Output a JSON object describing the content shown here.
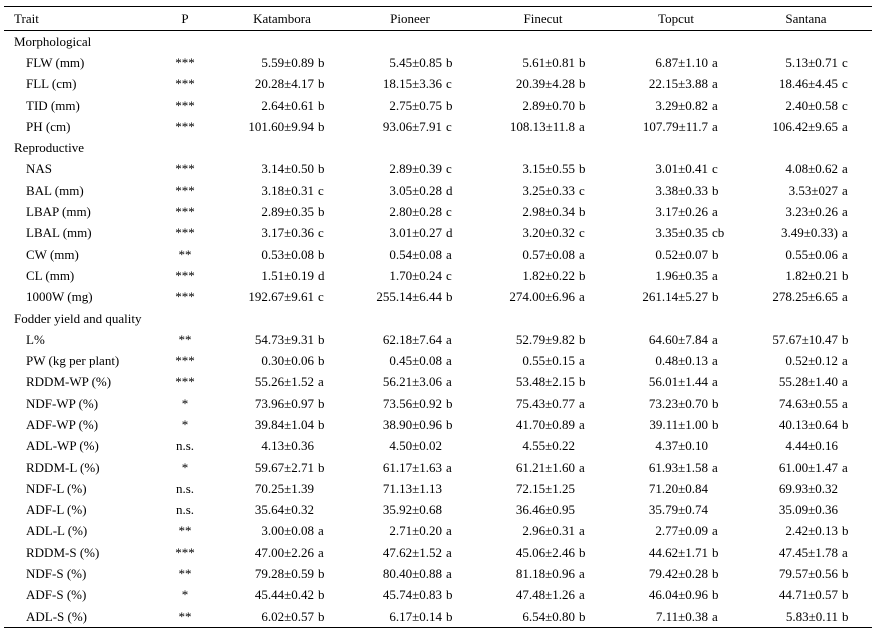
{
  "headers": [
    "Trait",
    "P",
    "Katambora",
    "Pioneer",
    "Finecut",
    "Topcut",
    "Santana"
  ],
  "sections": [
    {
      "title": "Morphological",
      "rows": [
        {
          "trait": "FLW (mm)",
          "p": "***",
          "values": [
            [
              "5.59±0.89",
              "b"
            ],
            [
              "5.45±0.85",
              "b"
            ],
            [
              "5.61±0.81",
              "b"
            ],
            [
              "6.87±1.10",
              "a"
            ],
            [
              "5.13±0.71",
              "c"
            ]
          ]
        },
        {
          "trait": "FLL (cm)",
          "p": "***",
          "values": [
            [
              "20.28±4.17",
              "b"
            ],
            [
              "18.15±3.36",
              "c"
            ],
            [
              "20.39±4.28",
              "b"
            ],
            [
              "22.15±3.88",
              "a"
            ],
            [
              "18.46±4.45",
              "c"
            ]
          ]
        },
        {
          "trait": "TID (mm)",
          "p": "***",
          "values": [
            [
              "2.64±0.61",
              "b"
            ],
            [
              "2.75±0.75",
              "b"
            ],
            [
              "2.89±0.70",
              "b"
            ],
            [
              "3.29±0.82",
              "a"
            ],
            [
              "2.40±0.58",
              "c"
            ]
          ]
        },
        {
          "trait": "PH (cm)",
          "p": "***",
          "values": [
            [
              "101.60±9.94",
              "b"
            ],
            [
              "93.06±7.91",
              "c"
            ],
            [
              "108.13±11.8",
              "a"
            ],
            [
              "107.79±11.7",
              "a"
            ],
            [
              "106.42±9.65",
              "a"
            ]
          ]
        }
      ]
    },
    {
      "title": "Reproductive",
      "rows": [
        {
          "trait": "NAS",
          "p": "***",
          "values": [
            [
              "3.14±0.50",
              "b"
            ],
            [
              "2.89±0.39",
              "c"
            ],
            [
              "3.15±0.55",
              "b"
            ],
            [
              "3.01±0.41",
              "c"
            ],
            [
              "4.08±0.62",
              "a"
            ]
          ]
        },
        {
          "trait": "BAL (mm)",
          "p": "***",
          "values": [
            [
              "3.18±0.31",
              "c"
            ],
            [
              "3.05±0.28",
              "d"
            ],
            [
              "3.25±0.33",
              "c"
            ],
            [
              "3.38±0.33",
              "b"
            ],
            [
              "3.53±027",
              "a"
            ]
          ]
        },
        {
          "trait": "LBAP (mm)",
          "p": "***",
          "values": [
            [
              "2.89±0.35",
              "b"
            ],
            [
              "2.80±0.28",
              "c"
            ],
            [
              "2.98±0.34",
              "b"
            ],
            [
              "3.17±0.26",
              "a"
            ],
            [
              "3.23±0.26",
              "a"
            ]
          ]
        },
        {
          "trait": "LBAL (mm)",
          "p": "***",
          "values": [
            [
              "3.17±0.36",
              "c"
            ],
            [
              "3.01±0.27",
              "d"
            ],
            [
              "3.20±0.32",
              "c"
            ],
            [
              "3.35±0.35",
              "cb"
            ],
            [
              "3.49±0.33)",
              "a"
            ]
          ]
        },
        {
          "trait": "CW (mm)",
          "p": "**",
          "values": [
            [
              "0.53±0.08",
              "b"
            ],
            [
              "0.54±0.08",
              "a"
            ],
            [
              "0.57±0.08",
              "a"
            ],
            [
              "0.52±0.07",
              "b"
            ],
            [
              "0.55±0.06",
              "a"
            ]
          ]
        },
        {
          "trait": "CL (mm)",
          "p": "***",
          "values": [
            [
              "1.51±0.19",
              "d"
            ],
            [
              "1.70±0.24",
              "c"
            ],
            [
              "1.82±0.22",
              "b"
            ],
            [
              "1.96±0.35",
              "a"
            ],
            [
              "1.82±0.21",
              "b"
            ]
          ]
        },
        {
          "trait": "1000W (mg)",
          "p": "***",
          "values": [
            [
              "192.67±9.61",
              "c"
            ],
            [
              "255.14±6.44",
              "b"
            ],
            [
              "274.00±6.96",
              "a"
            ],
            [
              "261.14±5.27",
              "b"
            ],
            [
              "278.25±6.65",
              "a"
            ]
          ]
        }
      ]
    },
    {
      "title": "Fodder yield and quality",
      "rows": [
        {
          "trait": "L%",
          "p": "**",
          "values": [
            [
              "54.73±9.31",
              "b"
            ],
            [
              "62.18±7.64",
              "a"
            ],
            [
              "52.79±9.82",
              "b"
            ],
            [
              "64.60±7.84",
              "a"
            ],
            [
              "57.67±10.47",
              "b"
            ]
          ]
        },
        {
          "trait": "PW (kg per plant)",
          "p": "***",
          "values": [
            [
              "0.30±0.06",
              "b"
            ],
            [
              "0.45±0.08",
              "a"
            ],
            [
              "0.55±0.15",
              "a"
            ],
            [
              "0.48±0.13",
              "a"
            ],
            [
              "0.52±0.12",
              "a"
            ]
          ]
        },
        {
          "trait": "RDDM-WP (%)",
          "p": "***",
          "values": [
            [
              "55.26±1.52",
              "a"
            ],
            [
              "56.21±3.06",
              "a"
            ],
            [
              "53.48±2.15",
              "b"
            ],
            [
              "56.01±1.44",
              "a"
            ],
            [
              "55.28±1.40",
              "a"
            ]
          ]
        },
        {
          "trait": "NDF-WP (%)",
          "p": "*",
          "values": [
            [
              "73.96±0.97",
              "b"
            ],
            [
              "73.56±0.92",
              "b"
            ],
            [
              "75.43±0.77",
              "a"
            ],
            [
              "73.23±0.70",
              "b"
            ],
            [
              "74.63±0.55",
              "a"
            ]
          ]
        },
        {
          "trait": "ADF-WP (%)",
          "p": "*",
          "values": [
            [
              "39.84±1.04",
              "b"
            ],
            [
              "38.90±0.96",
              "b"
            ],
            [
              "41.70±0.89",
              "a"
            ],
            [
              "39.11±1.00",
              "b"
            ],
            [
              "40.13±0.64",
              "b"
            ]
          ]
        },
        {
          "trait": "ADL-WP (%)",
          "p": "n.s.",
          "values": [
            [
              "4.13±0.36",
              ""
            ],
            [
              "4.50±0.02",
              ""
            ],
            [
              "4.55±0.22",
              ""
            ],
            [
              "4.37±0.10",
              ""
            ],
            [
              "4.44±0.16",
              ""
            ]
          ]
        },
        {
          "trait": "RDDM-L (%)",
          "p": "*",
          "values": [
            [
              "59.67±2.71",
              "b"
            ],
            [
              "61.17±1.63",
              "a"
            ],
            [
              "61.21±1.60",
              "a"
            ],
            [
              "61.93±1.58",
              "a"
            ],
            [
              "61.00±1.47",
              "a"
            ]
          ]
        },
        {
          "trait": "NDF-L (%)",
          "p": "n.s.",
          "values": [
            [
              "70.25±1.39",
              ""
            ],
            [
              "71.13±1.13",
              ""
            ],
            [
              "72.15±1.25",
              ""
            ],
            [
              "71.20±0.84",
              ""
            ],
            [
              "69.93±0.32",
              ""
            ]
          ]
        },
        {
          "trait": "ADF-L (%)",
          "p": "n.s.",
          "values": [
            [
              "35.64±0.32",
              ""
            ],
            [
              "35.92±0.68",
              ""
            ],
            [
              "36.46±0.95",
              ""
            ],
            [
              "35.79±0.74",
              ""
            ],
            [
              "35.09±0.36",
              ""
            ]
          ]
        },
        {
          "trait": "ADL-L (%)",
          "p": "**",
          "values": [
            [
              "3.00±0.08",
              "a"
            ],
            [
              "2.71±0.20",
              "a"
            ],
            [
              "2.96±0.31",
              "a"
            ],
            [
              "2.77±0.09",
              "a"
            ],
            [
              "2.42±0.13",
              "b"
            ]
          ]
        },
        {
          "trait": "RDDM-S (%)",
          "p": "***",
          "values": [
            [
              "47.00±2.26",
              "a"
            ],
            [
              "47.62±1.52",
              "a"
            ],
            [
              "45.06±2.46",
              "b"
            ],
            [
              "44.62±1.71",
              "b"
            ],
            [
              "47.45±1.78",
              "a"
            ]
          ]
        },
        {
          "trait": "NDF-S (%)",
          "p": "**",
          "values": [
            [
              "79.28±0.59",
              "b"
            ],
            [
              "80.40±0.88",
              "a"
            ],
            [
              "81.18±0.96",
              "a"
            ],
            [
              "79.42±0.28",
              "b"
            ],
            [
              "79.57±0.56",
              "b"
            ]
          ]
        },
        {
          "trait": "ADF-S (%)",
          "p": "*",
          "values": [
            [
              "45.44±0.42",
              "b"
            ],
            [
              "45.74±0.83",
              "b"
            ],
            [
              "47.48±1.26",
              "a"
            ],
            [
              "46.04±0.96",
              "b"
            ],
            [
              "44.71±0.57",
              "b"
            ]
          ]
        },
        {
          "trait": "ADL-S (%)",
          "p": "**",
          "values": [
            [
              "6.02±0.57",
              "b"
            ],
            [
              "6.17±0.14",
              "b"
            ],
            [
              "6.54±0.80",
              "b"
            ],
            [
              "7.11±0.38",
              "a"
            ],
            [
              "5.83±0.11",
              "b"
            ]
          ]
        }
      ]
    }
  ]
}
